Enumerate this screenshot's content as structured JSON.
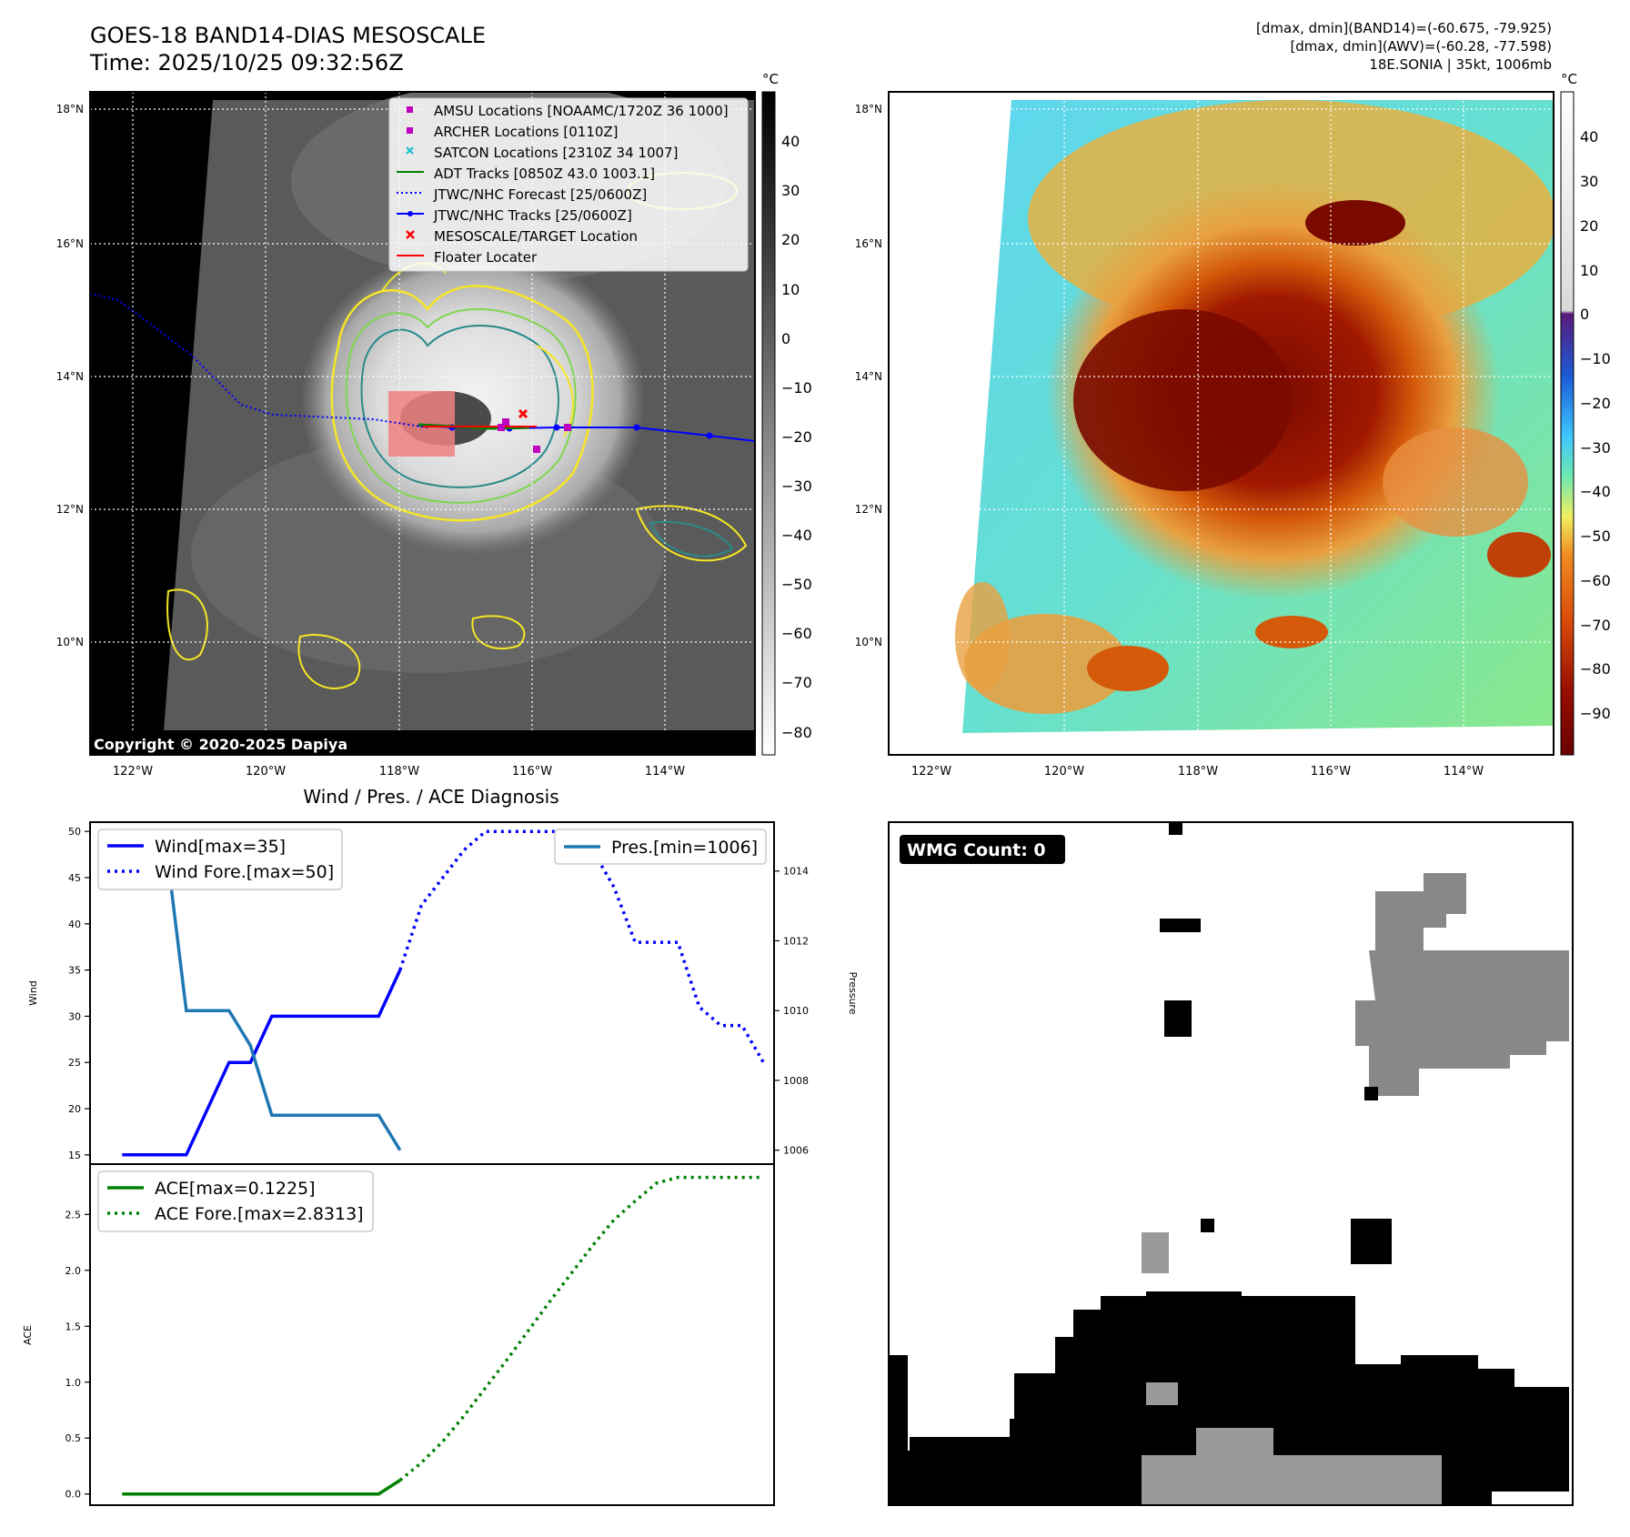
{
  "header": {
    "title": "GOES-18 BAND14-DIAS MESOSCALE",
    "time": "Time: 2025/10/25 09:32:56Z",
    "info_line1": "[dmax, dmin](BAND14)=(-60.675, -79.925)",
    "info_line2": "[dmax, dmin](AWV)=(-60.28, -77.598)",
    "info_line3": "18E.SONIA | 35kt, 1006mb"
  },
  "map_panels": {
    "lat_labels": [
      "18°N",
      "16°N",
      "14°N",
      "12°N",
      "10°N"
    ],
    "lon_labels": [
      "122°W",
      "120°W",
      "118°W",
      "116°W",
      "114°W"
    ],
    "copyright": "Copyright © 2020-2025 Dapiya",
    "colorbar_unit": "°C",
    "colorbar1_ticks": [
      "40",
      "30",
      "20",
      "10",
      "0",
      "−10",
      "−20",
      "−30",
      "−40",
      "−50",
      "−60",
      "−70",
      "−80"
    ],
    "colorbar2_ticks": [
      "40",
      "30",
      "20",
      "10",
      "0",
      "−10",
      "−20",
      "−30",
      "−40",
      "−50",
      "−60",
      "−70",
      "−80",
      "−90"
    ],
    "legend": [
      {
        "label": "AMSU Locations [NOAAMC/1720Z 36 1000]",
        "color": "#bf00bf"
      },
      {
        "label": "ARCHER Locations [0110Z]",
        "color": "#bf00bf"
      },
      {
        "label": "SATCON Locations [2310Z 34 1007]",
        "color": "#17becf"
      },
      {
        "label": "ADT Tracks [0850Z 43.0 1003.1]",
        "color": "#008000"
      },
      {
        "label": "JTWC/NHC Forecast [25/0600Z]",
        "color": "#0000ff"
      },
      {
        "label": "JTWC/NHC Tracks [25/0600Z]",
        "color": "#0000ff"
      },
      {
        "label": "MESOSCALE/TARGET Location",
        "color": "#ff0000"
      },
      {
        "label": "Floater Locater",
        "color": "#ff0000"
      }
    ],
    "colors": {
      "cold_core": "#7a0a00",
      "cloud_orange": "#e0620a",
      "background_cyan": "#5ee0e0",
      "background_green": "#7fe080"
    }
  },
  "wmg": {
    "label": "WMG Count: 0"
  },
  "chart_data": [
    {
      "type": "line",
      "title": "Wind / Pres. / ACE Diagnosis",
      "ylabel": "Wind",
      "ylabel_right": "Pressure",
      "ylim": [
        14,
        51
      ],
      "ylim_right": [
        1005.6,
        1015.4
      ],
      "yticks": [
        "50",
        "45",
        "40",
        "35",
        "30",
        "25",
        "20",
        "15"
      ],
      "yticks_right": [
        "1014",
        "1012",
        "1010",
        "1008",
        "1006"
      ],
      "legend_left": [
        "Wind[max=35]",
        "Wind Fore.[max=50]"
      ],
      "legend_right": [
        "Pres.[min=1006]"
      ],
      "xlim": [
        -1.5,
        30.5
      ],
      "series": [
        {
          "name": "Wind[max=35]",
          "color": "#0000ff",
          "style": "solid",
          "x": [
            0,
            3,
            5,
            6,
            7,
            9,
            12,
            13
          ],
          "values": [
            15,
            15,
            25,
            25,
            30,
            30,
            30,
            35
          ]
        },
        {
          "name": "Wind Fore.[max=50]",
          "color": "#0000ff",
          "style": "dotted",
          "x": [
            13,
            14,
            15,
            16,
            17,
            18,
            19,
            20,
            21,
            22,
            23,
            24,
            25,
            26,
            27,
            28,
            29,
            30
          ],
          "values": [
            35,
            42,
            45,
            48,
            50,
            50,
            50,
            50,
            50,
            48,
            44,
            38,
            38,
            38,
            31,
            29,
            29,
            25
          ]
        },
        {
          "name": "Pres.[min=1006]",
          "color": "#1f77b4",
          "style": "solid",
          "axis": "right",
          "x": [
            0,
            2,
            3,
            5,
            6,
            7,
            9,
            12,
            13
          ],
          "values": [
            1015,
            1015,
            1010,
            1010,
            1009,
            1007,
            1007,
            1007,
            1006
          ]
        }
      ]
    },
    {
      "type": "line",
      "ylabel": "ACE",
      "ylim": [
        -0.1,
        2.95
      ],
      "yticks": [
        "2.5",
        "2.0",
        "1.5",
        "1.0",
        "0.5",
        "0.0"
      ],
      "legend": [
        "ACE[max=0.1225]",
        "ACE Fore.[max=2.8313]"
      ],
      "xlim": [
        -1.5,
        30.5
      ],
      "series": [
        {
          "name": "ACE[max=0.1225]",
          "color": "#008000",
          "style": "solid",
          "x": [
            0,
            3,
            5,
            6,
            7,
            9,
            12,
            13
          ],
          "values": [
            0,
            0,
            0,
            0,
            0,
            0,
            0,
            0.1225
          ]
        },
        {
          "name": "ACE Fore.[max=2.8313]",
          "color": "#008000",
          "style": "dotted",
          "x": [
            13,
            14,
            15,
            16,
            17,
            18,
            19,
            20,
            21,
            22,
            23,
            24,
            25,
            26,
            27,
            28,
            29,
            30
          ],
          "values": [
            0.1225,
            0.28,
            0.47,
            0.7,
            0.95,
            1.2,
            1.46,
            1.72,
            1.97,
            2.22,
            2.45,
            2.62,
            2.78,
            2.8313,
            2.8313,
            2.8313,
            2.8313,
            2.8313
          ]
        }
      ]
    }
  ]
}
